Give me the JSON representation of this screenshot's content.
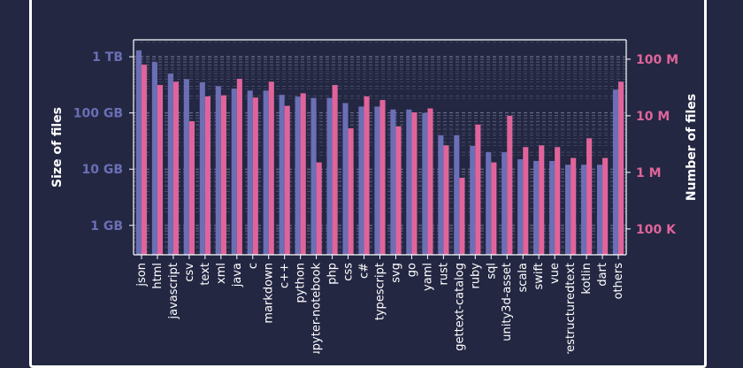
{
  "chart_data": {
    "type": "bar",
    "title": "",
    "xlabel": "",
    "ylabel_left": "Size of files",
    "ylabel_right": "Number of files",
    "y_scale": "log",
    "grid": "horizontal dashed (major and minor)",
    "colors": {
      "size": "#6b6fb5",
      "count": "#e0649a",
      "axis": "#ffffff",
      "background": "#232742"
    },
    "categories": [
      "json",
      "html",
      "javascript",
      "csv",
      "text",
      "xml",
      "java",
      "c",
      "markdown",
      "c++",
      "python",
      "jupyter-notebook",
      "php",
      "css",
      "c#",
      "typescript",
      "svg",
      "go",
      "yaml",
      "rust",
      "gettext-catalog",
      "ruby",
      "sql",
      "unity3d-asset",
      "scala",
      "swift",
      "vue",
      "restructuredtext",
      "kotlin",
      "dart",
      "others"
    ],
    "series": [
      {
        "name": "Size of files",
        "axis": "left",
        "unit": "bytes",
        "values": [
          1300000000000.0,
          800000000000.0,
          500000000000.0,
          400000000000.0,
          350000000000.0,
          300000000000.0,
          270000000000.0,
          250000000000.0,
          250000000000.0,
          210000000000.0,
          195000000000.0,
          185000000000.0,
          185000000000.0,
          150000000000.0,
          130000000000.0,
          130000000000.0,
          115000000000.0,
          115000000000.0,
          100000000000.0,
          40000000000.0,
          40000000000.0,
          26000000000.0,
          20000000000.0,
          20000000000.0,
          15000000000.0,
          14000000000.0,
          14000000000.0,
          12000000000.0,
          12000000000.0,
          12000000000.0,
          260000000000.0
        ]
      },
      {
        "name": "Number of files",
        "axis": "right",
        "unit": "files",
        "values": [
          80000000.0,
          35000000.0,
          40000000.0,
          8000000.0,
          22000000.0,
          23000000.0,
          45000000.0,
          21000000.0,
          40000000.0,
          15000000.0,
          25000000.0,
          1500000.0,
          35000000.0,
          6000000.0,
          22000000.0,
          19000000.0,
          6500000.0,
          11500000.0,
          13500000.0,
          3000000.0,
          800000.0,
          7000000.0,
          1500000.0,
          10000000.0,
          2800000.0,
          3000000.0,
          2800000.0,
          1800000.0,
          4000000.0,
          1800000.0,
          40000000.0
        ]
      }
    ],
    "left_axis": {
      "range_bytes": [
        300000000.0,
        2000000000000.0
      ],
      "ticks": [
        1000000000.0,
        10000000000.0,
        100000000000.0,
        1000000000000.0
      ],
      "tick_labels": [
        "1 GB",
        "10 GB",
        "100 GB",
        "1 TB"
      ]
    },
    "right_axis": {
      "range_files": [
        35000.0,
        220000000.0
      ],
      "ticks": [
        100000.0,
        1000000.0,
        10000000.0,
        100000000.0
      ],
      "tick_labels": [
        "100 K",
        "1 M",
        "10 M",
        "100 M"
      ]
    }
  }
}
